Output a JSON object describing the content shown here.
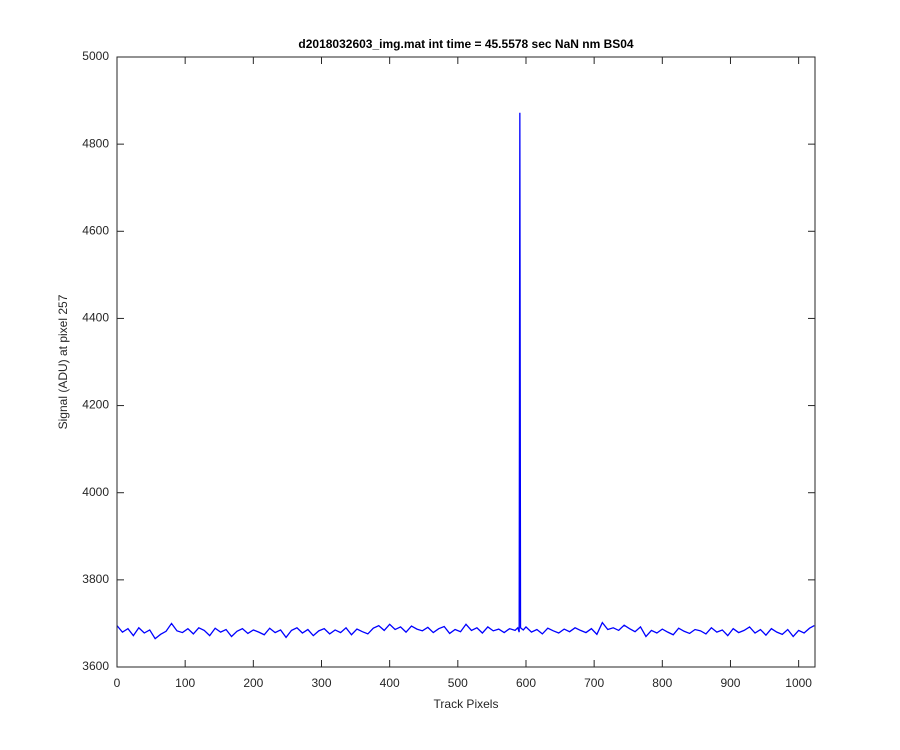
{
  "chart_data": {
    "type": "line",
    "title": "d2018032603_img.mat int time = 45.5578 sec  NaN nm BS04",
    "x_label": "Track Pixels",
    "y_label": "Signal (ADU) at pixel 257",
    "xlim": [
      0,
      1024
    ],
    "ylim": [
      3600,
      5000
    ],
    "xticks": [
      0,
      100,
      200,
      300,
      400,
      500,
      600,
      700,
      800,
      900,
      1000
    ],
    "yticks": [
      3600,
      3800,
      4000,
      4200,
      4400,
      4600,
      4800,
      5000
    ],
    "grid": false,
    "x": [
      0,
      8,
      16,
      24,
      32,
      40,
      48,
      56,
      64,
      72,
      80,
      88,
      96,
      104,
      112,
      120,
      128,
      136,
      144,
      152,
      160,
      168,
      176,
      184,
      192,
      200,
      208,
      216,
      224,
      232,
      240,
      248,
      256,
      264,
      272,
      280,
      288,
      296,
      304,
      312,
      320,
      328,
      336,
      344,
      352,
      360,
      368,
      376,
      384,
      392,
      400,
      408,
      416,
      424,
      432,
      440,
      448,
      456,
      464,
      472,
      480,
      488,
      496,
      504,
      512,
      520,
      528,
      536,
      544,
      552,
      560,
      568,
      576,
      584,
      588,
      590,
      591,
      592,
      596,
      600,
      608,
      616,
      624,
      632,
      640,
      648,
      656,
      664,
      672,
      680,
      688,
      696,
      704,
      712,
      720,
      728,
      736,
      744,
      752,
      760,
      768,
      776,
      784,
      792,
      800,
      808,
      816,
      824,
      832,
      840,
      848,
      856,
      864,
      872,
      880,
      888,
      896,
      904,
      912,
      920,
      928,
      936,
      944,
      952,
      960,
      968,
      976,
      984,
      992,
      1000,
      1008,
      1016,
      1023
    ],
    "series": [
      {
        "color": "#0000ff",
        "values": [
          3695,
          3680,
          3688,
          3672,
          3690,
          3678,
          3685,
          3665,
          3675,
          3682,
          3700,
          3683,
          3679,
          3688,
          3676,
          3690,
          3684,
          3672,
          3689,
          3680,
          3686,
          3670,
          3682,
          3688,
          3677,
          3685,
          3680,
          3674,
          3689,
          3679,
          3685,
          3668,
          3684,
          3690,
          3678,
          3686,
          3672,
          3683,
          3688,
          3676,
          3685,
          3679,
          3690,
          3674,
          3687,
          3681,
          3676,
          3689,
          3695,
          3684,
          3698,
          3686,
          3692,
          3680,
          3694,
          3687,
          3683,
          3691,
          3679,
          3688,
          3693,
          3677,
          3686,
          3681,
          3698,
          3684,
          3690,
          3678,
          3692,
          3683,
          3687,
          3679,
          3688,
          3684,
          3690,
          3680,
          4872,
          3690,
          3685,
          3692,
          3680,
          3686,
          3676,
          3689,
          3683,
          3678,
          3687,
          3681,
          3690,
          3684,
          3679,
          3688,
          3675,
          3702,
          3686,
          3690,
          3684,
          3696,
          3688,
          3681,
          3692,
          3670,
          3684,
          3678,
          3687,
          3680,
          3674,
          3689,
          3682,
          3677,
          3686,
          3683,
          3676,
          3690,
          3680,
          3685,
          3672,
          3688,
          3679,
          3684,
          3692,
          3678,
          3686,
          3673,
          3688,
          3680,
          3675,
          3686,
          3670,
          3684,
          3678,
          3689,
          3695
        ]
      }
    ]
  }
}
